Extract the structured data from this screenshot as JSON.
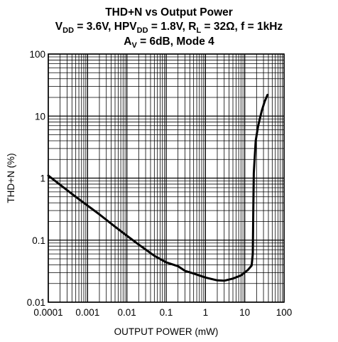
{
  "chart_data": {
    "type": "line",
    "title": {
      "line1": "THD+N vs Output Power",
      "line2": [
        {
          "text": "V",
          "sub": false
        },
        {
          "text": "DD",
          "sub": true
        },
        {
          "text": " = 3.6V, HPV",
          "sub": false
        },
        {
          "text": "DD",
          "sub": true
        },
        {
          "text": " = 1.8V, R",
          "sub": false
        },
        {
          "text": "L",
          "sub": true
        },
        {
          "text": " = 32Ω, f = 1kHz",
          "sub": false
        }
      ],
      "line3": [
        {
          "text": "A",
          "sub": false
        },
        {
          "text": "V",
          "sub": true
        },
        {
          "text": " = 6dB, Mode 4",
          "sub": false
        }
      ]
    },
    "xlabel": "OUTPUT POWER (mW)",
    "ylabel": "THD+N (%)",
    "x_scale": "log",
    "y_scale": "log",
    "xlim": [
      0.0001,
      100
    ],
    "ylim": [
      0.01,
      100
    ],
    "x_tick_labels": [
      {
        "value": 0.0001,
        "label": "0.0001"
      },
      {
        "value": 0.001,
        "label": "0.001"
      },
      {
        "value": 0.01,
        "label": "0.01"
      },
      {
        "value": 0.1,
        "label": "0.1"
      },
      {
        "value": 1,
        "label": "1"
      },
      {
        "value": 10,
        "label": "10"
      },
      {
        "value": 100,
        "label": "100"
      }
    ],
    "y_tick_labels": [
      {
        "value": 0.01,
        "label": "0.01"
      },
      {
        "value": 0.1,
        "label": "0.1"
      },
      {
        "value": 1,
        "label": "1"
      },
      {
        "value": 10,
        "label": "10"
      },
      {
        "value": 100,
        "label": "100"
      }
    ],
    "grid": true,
    "series": [
      {
        "color": "#000000",
        "points": [
          [
            0.0001,
            1.1
          ],
          [
            0.0002,
            0.78
          ],
          [
            0.0005,
            0.5
          ],
          [
            0.001,
            0.36
          ],
          [
            0.002,
            0.26
          ],
          [
            0.005,
            0.165
          ],
          [
            0.01,
            0.118
          ],
          [
            0.02,
            0.085
          ],
          [
            0.05,
            0.056
          ],
          [
            0.1,
            0.044
          ],
          [
            0.2,
            0.038
          ],
          [
            0.3,
            0.032
          ],
          [
            0.5,
            0.029
          ],
          [
            1,
            0.025
          ],
          [
            2,
            0.0225
          ],
          [
            3,
            0.0222
          ],
          [
            5,
            0.024
          ],
          [
            8,
            0.027
          ],
          [
            12,
            0.033
          ],
          [
            15,
            0.039
          ],
          [
            16,
            0.06
          ],
          [
            16.5,
            0.3
          ],
          [
            17,
            1.2
          ],
          [
            19,
            4
          ],
          [
            22,
            7
          ],
          [
            27,
            12
          ],
          [
            32,
            17
          ],
          [
            38,
            22
          ]
        ]
      }
    ]
  }
}
